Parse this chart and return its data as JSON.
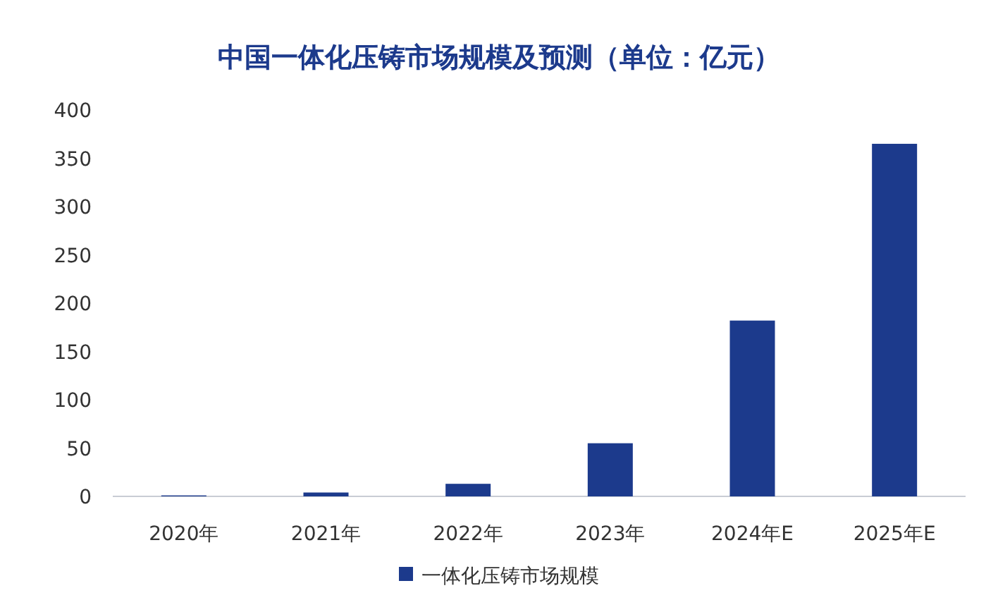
{
  "chart_data": {
    "type": "bar",
    "title": "中国一体化压铸市场规模及预测（单位：亿元）",
    "categories": [
      "2020年",
      "2021年",
      "2022年",
      "2023年",
      "2024年E",
      "2025年E"
    ],
    "series": [
      {
        "name": "一体化压铸市场规模",
        "color": "#1c3a8c",
        "values": [
          1,
          4,
          13,
          55,
          182,
          365
        ]
      }
    ],
    "ylim": [
      0,
      400
    ],
    "yticks": [
      0,
      50,
      100,
      150,
      200,
      250,
      300,
      350,
      400
    ],
    "grid": false,
    "legend": "bottom"
  }
}
